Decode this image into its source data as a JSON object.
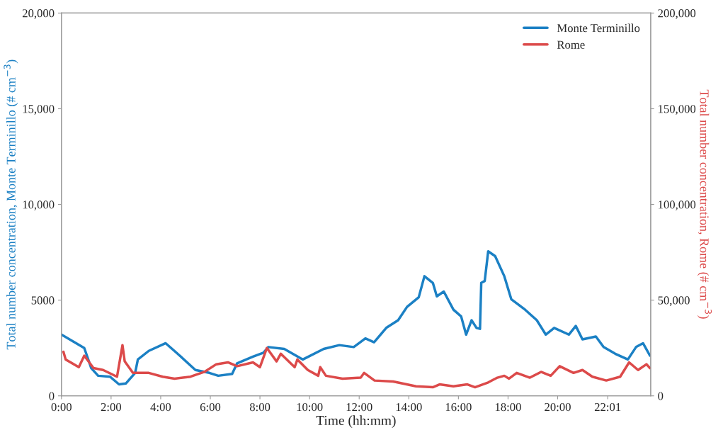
{
  "chart_data": {
    "type": "line",
    "xlabel": "Time (hh:mm)",
    "ylabel": "Total number concentration, Monte Terminillo (# cm$^{−3}$)",
    "y2label": "Total number concentration, Rome (# cm$^{−3}$)",
    "xlim": [
      0,
      23.75
    ],
    "xticks": [
      {
        "value": 0,
        "label": "0:00"
      },
      {
        "value": 2,
        "label": "2:00"
      },
      {
        "value": 4,
        "label": "4:00"
      },
      {
        "value": 6,
        "label": "6:00"
      },
      {
        "value": 8,
        "label": "8:00"
      },
      {
        "value": 10,
        "label": "10:00"
      },
      {
        "value": 12,
        "label": "12:00"
      },
      {
        "value": 14,
        "label": "14:00"
      },
      {
        "value": 16,
        "label": "16:00"
      },
      {
        "value": 18,
        "label": "18:00"
      },
      {
        "value": 20,
        "label": "20:00"
      },
      {
        "value": 22.017,
        "label": "22:01"
      }
    ],
    "ylim": [
      0,
      20000
    ],
    "yticks": [
      0,
      5000,
      {
        "value": 10000,
        "label": "10,000"
      },
      {
        "value": 15000,
        "label": "15,000"
      },
      {
        "value": 20000,
        "label": "20,000"
      }
    ],
    "y2lim": [
      0,
      200000
    ],
    "y2ticks": [
      0,
      {
        "value": 50000,
        "label": "50,000"
      },
      {
        "value": 100000,
        "label": "100,000"
      },
      {
        "value": 150000,
        "label": "150,000"
      },
      {
        "value": 200000,
        "label": "200,000"
      }
    ],
    "grid": false,
    "legend": "top right",
    "series": [
      {
        "name": "Monte Terminillo",
        "color": "#1b80c4",
        "x": [
          0,
          0.92,
          1.2,
          1.48,
          1.96,
          2.32,
          2.6,
          2.97,
          3.08,
          3.52,
          4.2,
          4.64,
          5.4,
          5.96,
          6.32,
          6.88,
          7.08,
          7.72,
          8.14,
          8.34,
          8.98,
          9.73,
          10.57,
          11.2,
          11.78,
          12.25,
          12.6,
          13.09,
          13.57,
          13.93,
          14.4,
          14.63,
          14.97,
          15.13,
          15.41,
          15.8,
          16.11,
          16.31,
          16.53,
          16.73,
          16.87,
          16.92,
          17.06,
          17.2,
          17.48,
          17.85,
          18.13,
          18.69,
          19.16,
          19.52,
          19.86,
          20.45,
          20.73,
          21.0,
          21.54,
          21.85,
          22.32,
          22.83,
          23.16,
          23.44,
          23.72
        ],
        "values": [
          3200,
          2500,
          1450,
          1050,
          1000,
          600,
          650,
          1200,
          1900,
          2350,
          2750,
          2250,
          1350,
          1200,
          1050,
          1150,
          1700,
          2050,
          2250,
          2550,
          2450,
          1900,
          2450,
          2650,
          2550,
          3000,
          2800,
          3550,
          3950,
          4650,
          5150,
          6250,
          5900,
          5200,
          5450,
          4500,
          4150,
          3200,
          3950,
          3550,
          3500,
          5900,
          6000,
          7550,
          7300,
          6250,
          5050,
          4500,
          3950,
          3200,
          3550,
          3200,
          3650,
          2950,
          3100,
          2550,
          2200,
          1900,
          2550,
          2750,
          2100
        ]
      },
      {
        "name": "Rome",
        "color": "#dc4a4a",
        "axis": "y2",
        "x": [
          0.08,
          0.17,
          0.7,
          0.92,
          1.29,
          1.68,
          2.24,
          2.38,
          2.46,
          2.55,
          2.88,
          3.52,
          4.08,
          4.56,
          5.2,
          5.76,
          6.24,
          6.71,
          7.08,
          7.72,
          8.0,
          8.28,
          8.67,
          8.84,
          9.4,
          9.51,
          9.93,
          10.35,
          10.43,
          10.66,
          11.33,
          12.06,
          12.2,
          12.62,
          13.37,
          14.29,
          14.97,
          15.24,
          15.8,
          16.36,
          16.67,
          17.2,
          17.57,
          17.85,
          18.04,
          18.35,
          18.88,
          19.33,
          19.72,
          20.08,
          20.64,
          21.0,
          21.4,
          21.96,
          22.52,
          22.88,
          23.24,
          23.58,
          23.72
        ],
        "values": [
          23000,
          19000,
          15000,
          21000,
          14500,
          13500,
          10000,
          20500,
          26500,
          18000,
          12000,
          12000,
          10000,
          9000,
          10000,
          12500,
          16500,
          17500,
          15500,
          17500,
          15000,
          25000,
          18000,
          22000,
          15000,
          19000,
          13500,
          10500,
          15000,
          10500,
          9000,
          9500,
          12000,
          8000,
          7500,
          5000,
          4500,
          6000,
          5000,
          6000,
          4500,
          7000,
          9500,
          10500,
          9000,
          12000,
          9500,
          12500,
          10500,
          15500,
          12000,
          13500,
          10000,
          8000,
          10000,
          17500,
          13500,
          16500,
          14500
        ]
      }
    ]
  }
}
